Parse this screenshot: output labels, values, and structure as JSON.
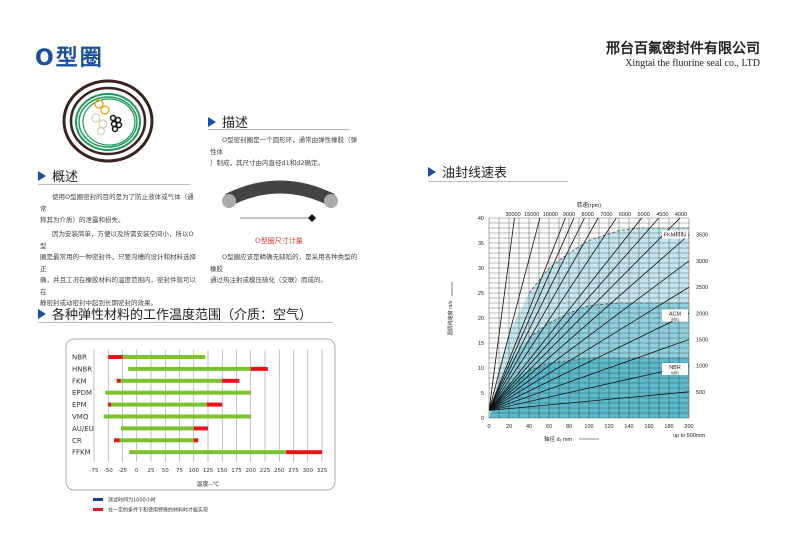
{
  "header": {
    "title": "O型圈",
    "company_cn": "邢台百氟密封件有限公司",
    "company_en": "Xingtai the fluorine seal co., LTD"
  },
  "overview": {
    "heading": "概述",
    "p1": [
      "使用O型圈密封的目的是为了防止液体或气体（通常",
      "称其为介质）的泄露和损失。"
    ],
    "p2": [
      "因为安装简单，方便以及所需安装空间小，所以O型",
      "圈是最常用的一种密封件，只要沟槽的设计和材料选择正",
      "确，并且工况在橡胶材料的温度范围内，密封件就可以在",
      "静密封或动密封中起到长期密封的效果。"
    ]
  },
  "description": {
    "heading": "描述",
    "p1": [
      "O型密封圈是一个圆形环，通常由弹性橡胶（弹性体",
      "）制成，其尺寸由内直径d1和d2确定。"
    ],
    "caption": "O型圈尺寸计量",
    "p2": [
      "O型圈应该是精确无缺陷的，是采用各种类型的橡胶",
      "通过热注射或模压硫化（交联）而成的。"
    ]
  },
  "temp_section": {
    "heading": "各种弹性材料的工作温度范围（介质：空气）"
  },
  "speed_section": {
    "heading": "油封线速表"
  },
  "chart_data": [
    {
      "type": "bar",
      "orientation": "horizontal",
      "xlabel": "温度--℃",
      "xlim": [
        -75,
        325
      ],
      "xticks": [
        -75,
        -50,
        -25,
        0,
        25,
        50,
        75,
        100,
        125,
        150,
        175,
        200,
        225,
        250,
        275,
        300,
        325
      ],
      "categories": [
        "NBR",
        "HNBR",
        "FKM",
        "EPDM",
        "EPM",
        "VMQ",
        "AU/EU",
        "CR",
        "FFKM"
      ],
      "colors": {
        "normal": "#7cc230",
        "special": "#e8141c",
        "legend_normal": "#1a3f9a"
      },
      "legend": [
        "测试时间为1000小时",
        "在一定的条件下和使用特殊的材料时才能实现"
      ],
      "ranges": [
        {
          "normal": [
            -25,
            120
          ],
          "special": [
            [
              -50,
              -25
            ]
          ]
        },
        {
          "normal": [
            -15,
            200
          ],
          "special": [
            [
              200,
              230
            ]
          ]
        },
        {
          "normal": [
            -28,
            150
          ],
          "special": [
            [
              -35,
              -28
            ],
            [
              150,
              180
            ]
          ]
        },
        {
          "normal": [
            -55,
            200
          ],
          "special": []
        },
        {
          "normal": [
            -45,
            123
          ],
          "special": [
            [
              -50,
              -45
            ],
            [
              123,
              150
            ]
          ]
        },
        {
          "normal": [
            -58,
            200
          ],
          "special": []
        },
        {
          "normal": [
            -28,
            100
          ],
          "special": [
            [
              100,
              125
            ]
          ]
        },
        {
          "normal": [
            -30,
            100
          ],
          "special": [
            [
              -40,
              -30
            ],
            [
              100,
              108
            ]
          ]
        },
        {
          "normal": [
            -13,
            262
          ],
          "special": [
            [
              262,
              325
            ]
          ]
        }
      ]
    },
    {
      "type": "line",
      "title": "转速(rpm)",
      "xlabel": "轴径 d₁ mm",
      "xnote": "up to 500mm",
      "ylabel": "圆周线速度 m/s",
      "xlim": [
        0,
        200
      ],
      "ylim": [
        0,
        40
      ],
      "xticks": [
        0,
        20,
        40,
        60,
        80,
        100,
        120,
        140,
        160,
        180,
        200
      ],
      "yticks": [
        0,
        5,
        10,
        15,
        20,
        25,
        30,
        35,
        40
      ],
      "rpm_top": [
        30000,
        15000,
        10000,
        9000,
        8000,
        7000,
        6000,
        5000,
        4500,
        4000
      ],
      "rpm_right": [
        3500,
        3000,
        2500,
        2000,
        1500,
        1000,
        500
      ],
      "regions": [
        {
          "label": "FKM材料",
          "sub": "",
          "color": "#c4e6ee",
          "boundary": [
            [
              0,
              0
            ],
            [
              10,
              10
            ],
            [
              20,
              17
            ],
            [
              40,
              25
            ],
            [
              60,
              30
            ],
            [
              80,
              33
            ],
            [
              100,
              35.5
            ],
            [
              130,
              37.5
            ],
            [
              150,
              38
            ],
            [
              200,
              38
            ]
          ]
        },
        {
          "label": "ACM",
          "sub": "材料",
          "color": "#8fd0de",
          "boundary": [
            [
              0,
              0
            ],
            [
              10,
              7
            ],
            [
              20,
              11
            ],
            [
              40,
              16
            ],
            [
              60,
              19
            ],
            [
              80,
              21
            ],
            [
              100,
              22.5
            ],
            [
              130,
              23
            ],
            [
              200,
              23
            ]
          ]
        },
        {
          "label": "NBR",
          "sub": "材料",
          "color": "#5bbacb",
          "boundary": [
            [
              0,
              0
            ],
            [
              10,
              5
            ],
            [
              20,
              7
            ],
            [
              40,
              9.5
            ],
            [
              60,
              11
            ],
            [
              80,
              11.5
            ],
            [
              100,
              12
            ],
            [
              200,
              12
            ]
          ]
        }
      ]
    }
  ]
}
